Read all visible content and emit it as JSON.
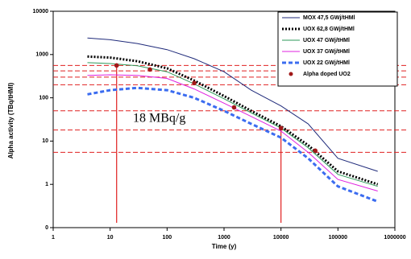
{
  "chart_data": {
    "type": "line",
    "ylabel": "Alpha activity (TBq/tHMl)",
    "xlabel": "Time (y)",
    "xscale": "log",
    "yscale": "log",
    "xlim": [
      1,
      1000000
    ],
    "ylim": [
      0.1,
      10000
    ],
    "xticks": [
      1,
      10,
      100,
      1000,
      10000,
      100000,
      1000000
    ],
    "yticks": [
      {
        "value": 0.1,
        "label": "0"
      },
      1,
      10,
      100,
      1000,
      10000
    ],
    "series": [
      {
        "name": "MOX 47,5 GWj/tHMl",
        "color": "#1f2a7a",
        "style": "solid",
        "x": [
          4,
          10,
          30,
          100,
          300,
          1000,
          3000,
          10000,
          30000,
          100000,
          500000
        ],
        "values": [
          2400,
          2200,
          1800,
          1300,
          800,
          400,
          150,
          65,
          25,
          4,
          2
        ]
      },
      {
        "name": "UOX 62,8 GWj/tHMl",
        "color": "#000000",
        "style": "dotted",
        "x": [
          4,
          10,
          30,
          100,
          300,
          1000,
          3000,
          10000,
          30000,
          100000,
          500000
        ],
        "values": [
          900,
          850,
          700,
          480,
          250,
          110,
          50,
          22,
          8,
          2,
          1
        ]
      },
      {
        "name": "UOX 47 GWj/tHMl",
        "color": "#2e9a5a",
        "style": "solid",
        "x": [
          4,
          10,
          30,
          100,
          300,
          1000,
          3000,
          10000,
          30000,
          100000,
          500000
        ],
        "values": [
          650,
          620,
          550,
          400,
          210,
          95,
          45,
          20,
          7,
          1.7,
          0.9
        ]
      },
      {
        "name": "UOX 37 GWj/tHMl",
        "color": "#e020e0",
        "style": "solid",
        "x": [
          4,
          10,
          30,
          100,
          300,
          1000,
          3000,
          10000,
          30000,
          100000,
          500000
        ],
        "values": [
          330,
          340,
          330,
          280,
          160,
          75,
          37,
          17,
          5.5,
          1.3,
          0.7
        ]
      },
      {
        "name": "UOX 22 GWj/tHMl",
        "color": "#3b6cf0",
        "style": "dashed",
        "x": [
          4,
          10,
          30,
          100,
          300,
          1000,
          3000,
          10000,
          30000,
          100000,
          500000
        ],
        "values": [
          120,
          150,
          170,
          150,
          100,
          50,
          25,
          12,
          4,
          0.9,
          0.4
        ]
      },
      {
        "name": "Alpha doped UO2",
        "color": "#a01818",
        "style": "markers",
        "x": [
          13,
          50,
          300,
          1500,
          10000,
          40000
        ],
        "values": [
          560,
          450,
          220,
          60,
          20,
          6
        ]
      }
    ],
    "reference_lines": [
      560,
      420,
      300,
      200,
      50,
      18,
      5.5
    ],
    "reference_vlines": [
      {
        "x": 13,
        "top": 560
      },
      {
        "x": 10000,
        "top": 20
      }
    ],
    "reference_color": "#e02020",
    "annotation": "18 MBq/g"
  }
}
